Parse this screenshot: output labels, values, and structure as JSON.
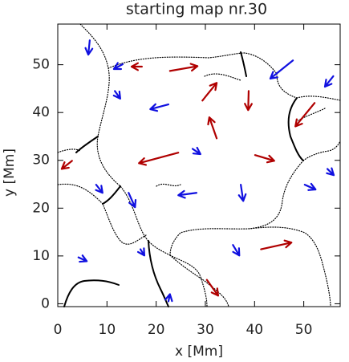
{
  "chart_data": {
    "type": "quiver",
    "title": "starting map nr.30",
    "x_label": "x [Mm]",
    "y_label": "y [Mm]",
    "xlim": [
      0,
      57.4
    ],
    "ylim": [
      -0.6,
      58.5
    ],
    "xticks": [
      0,
      10,
      20,
      30,
      40,
      50
    ],
    "yticks": [
      0,
      10,
      20,
      30,
      40,
      50
    ],
    "series": [
      {
        "color": "#b00000",
        "x": [
          17.1,
          22.8,
          29.4,
          38.8,
          52.2,
          32.3,
          24.5,
          40.1,
          2.9,
          41.3,
          30.3
        ],
        "y": [
          49.6,
          48.7,
          42.5,
          44.5,
          42.0,
          34.6,
          31.6,
          31.1,
          29.9,
          11.4,
          5.0
        ],
        "u": [
          -2.1,
          5.6,
          2.9,
          -0.1,
          -3.9,
          -1.5,
          -8.0,
          3.9,
          -2.1,
          6.2,
          2.3
        ],
        "v": [
          0,
          1.0,
          3.7,
          -4.0,
          -4.9,
          4.4,
          -2.2,
          -1.2,
          -1.7,
          1.4,
          -3.3
        ]
      },
      {
        "color": "#1010e0",
        "x": [
          6.5,
          13.2,
          47.8,
          56.0,
          11.6,
          22.5,
          27.4,
          7.8,
          14.4,
          28.2,
          37.2,
          50.2,
          54.8,
          4.2,
          16.8,
          35.6,
          22.5
        ],
        "y": [
          55.1,
          50.1,
          50.9,
          47.6,
          44.5,
          41.7,
          32.4,
          24.9,
          23.2,
          23.2,
          24.9,
          24.9,
          28.2,
          9.7,
          11.4,
          12.3,
          0.5
        ],
        "u": [
          -0.3,
          -1.8,
          -4.6,
          -1.7,
          1.1,
          -3.7,
          1.6,
          1.3,
          1.3,
          -3.7,
          0.5,
          2.2,
          1.3,
          1.7,
          0.8,
          1.3,
          0.3
        ],
        "v": [
          -3.0,
          -1.0,
          -3.8,
          -2.2,
          -1.6,
          -1.0,
          -1.1,
          -1.7,
          -3.0,
          -0.5,
          -3.4,
          -1.0,
          -1.3,
          -0.8,
          -1.3,
          -2.2,
          1.5
        ]
      }
    ]
  }
}
